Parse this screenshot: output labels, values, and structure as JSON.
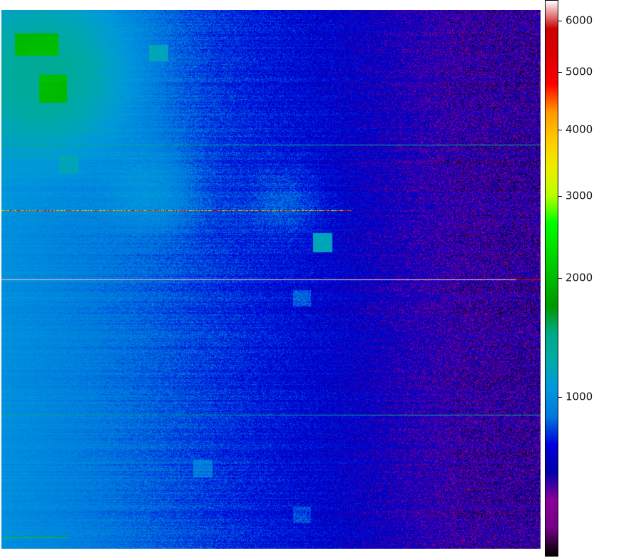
{
  "chart_data": {
    "type": "heatmap",
    "title": "",
    "xlabel": "",
    "ylabel": "",
    "colormap": "nipy_spectral",
    "color_scale": "sqrt",
    "colorbar": {
      "vmin": 512,
      "vmax": 6434,
      "ticks": [
        {
          "value": 1000,
          "label": "1000"
        },
        {
          "value": 2000,
          "label": "2000"
        },
        {
          "value": 3000,
          "label": "3000"
        },
        {
          "value": 4000,
          "label": "4000"
        },
        {
          "value": 5000,
          "label": "5000"
        },
        {
          "value": 6000,
          "label": "6000"
        }
      ]
    },
    "background_gradient": {
      "left_value": 1000,
      "right_value": 610
    },
    "features": [
      {
        "kind": "bright-patch",
        "value": 1900,
        "description_region": "upper-left"
      },
      {
        "kind": "horizontal-line",
        "value": 1400
      },
      {
        "kind": "horizontal-line-partial",
        "value": 5000
      },
      {
        "kind": "horizontal-line",
        "value": 6200
      },
      {
        "kind": "horizontal-line",
        "value": 1400
      }
    ]
  }
}
